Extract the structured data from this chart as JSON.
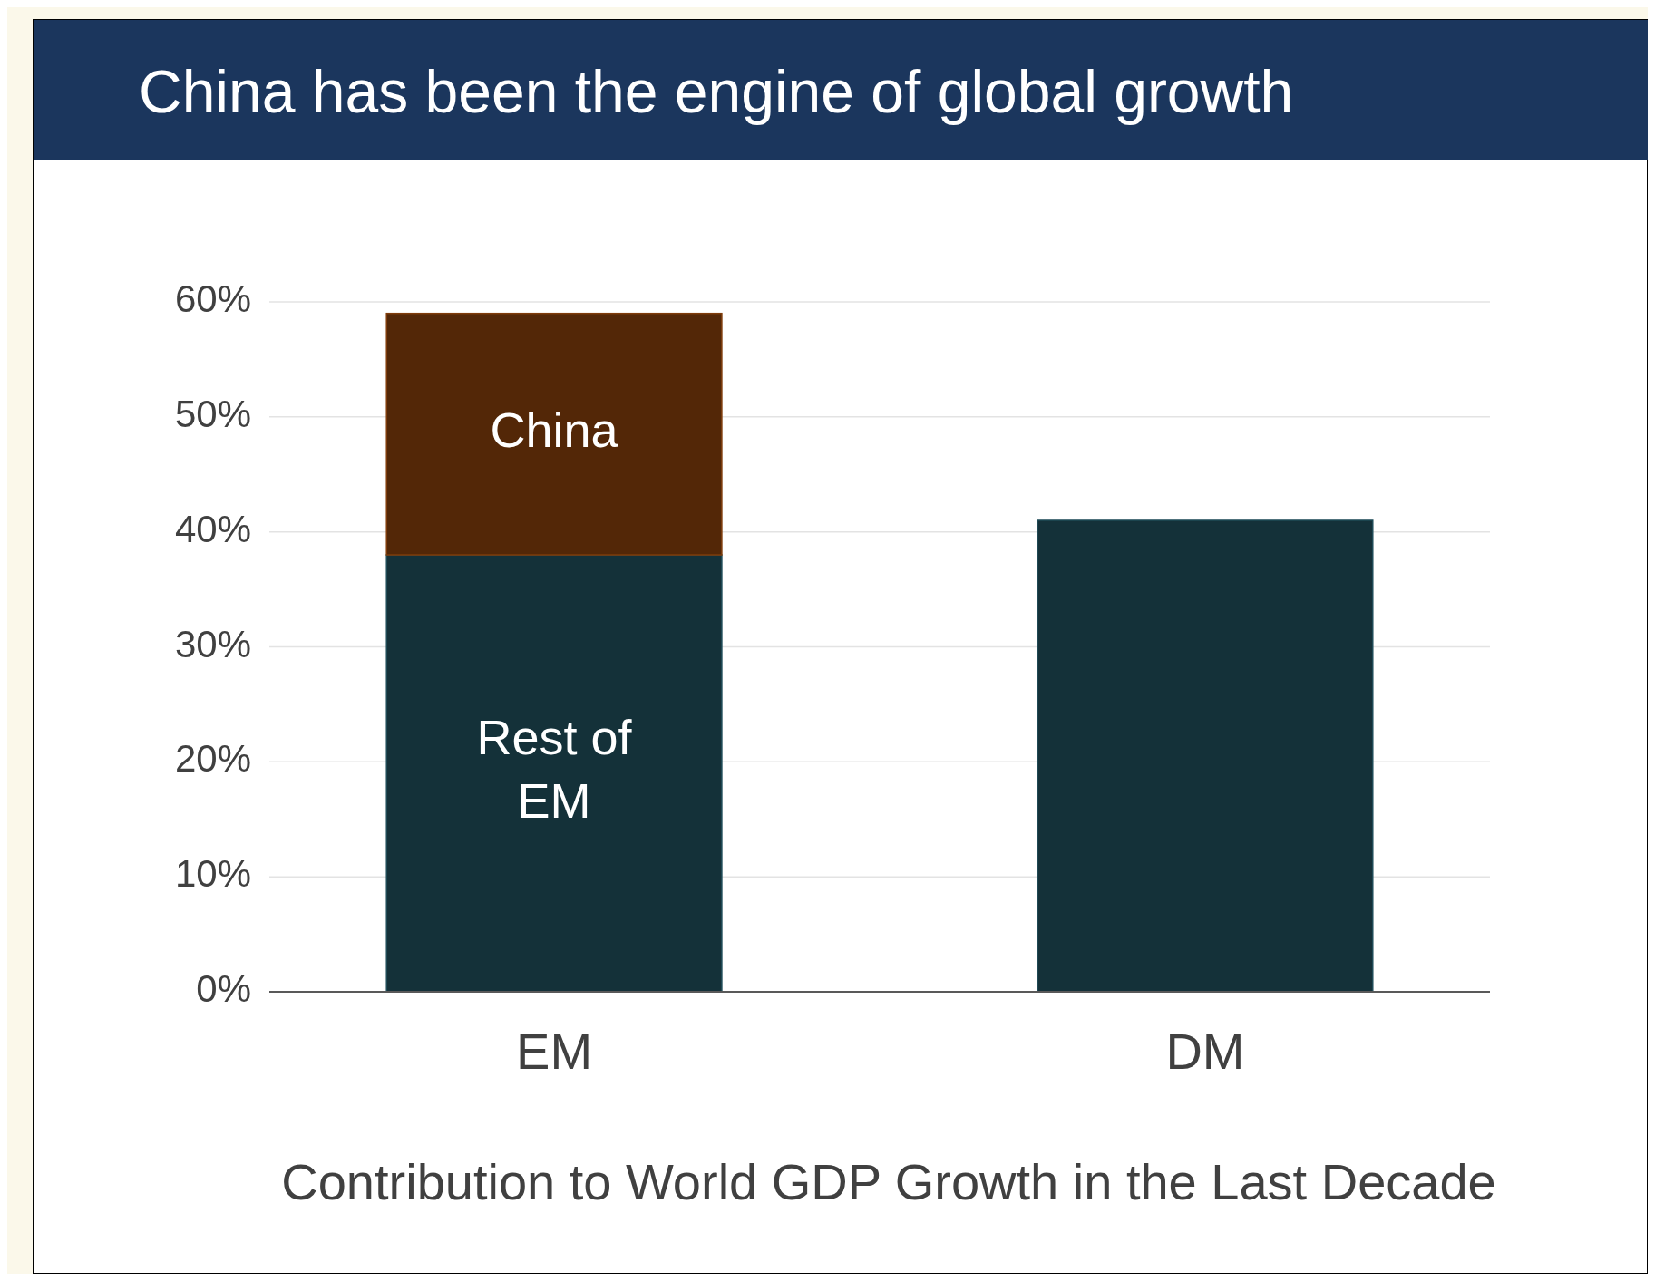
{
  "chart_data": {
    "type": "bar",
    "title": "China has been the engine of global growth",
    "xlabel": "Contribution to World GDP Growth in the Last Decade",
    "categories": [
      "EM",
      "DM"
    ],
    "stacked": true,
    "grid": "y",
    "ylim": [
      0,
      60
    ],
    "yticks": [
      {
        "value": 0,
        "label": "0%"
      },
      {
        "value": 10,
        "label": "10%"
      },
      {
        "value": 20,
        "label": "20%"
      },
      {
        "value": 30,
        "label": "30%"
      },
      {
        "value": 40,
        "label": "40%"
      },
      {
        "value": 50,
        "label": "50%"
      },
      {
        "value": 60,
        "label": "60%"
      }
    ],
    "series": [
      {
        "name": "Rest of EM",
        "color": "#143139",
        "values": [
          38,
          null
        ]
      },
      {
        "name": "China",
        "color": "#532707",
        "values": [
          21,
          null
        ]
      },
      {
        "color": "#143139",
        "values": [
          null,
          41
        ]
      }
    ]
  }
}
